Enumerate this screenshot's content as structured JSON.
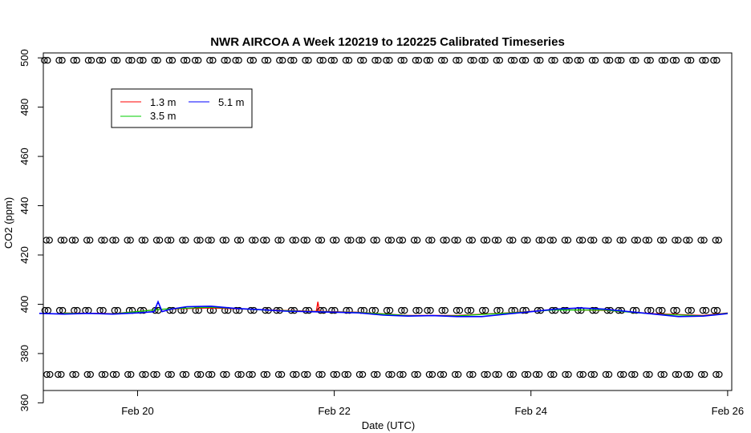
{
  "chart_data": {
    "type": "line",
    "title": "NWR AIRCOA A  Week 120219 to 120225  Calibrated Timeseries",
    "xlabel": "Date (UTC)",
    "ylabel": "CO2 (ppm)",
    "xlim": [
      "2012-02-19T01:00",
      "2012-02-26T01:00"
    ],
    "ylim": [
      365,
      502
    ],
    "x_ticks": [
      "2012-02-20",
      "2012-02-22",
      "2012-02-24",
      "2012-02-26"
    ],
    "x_tick_labels": [
      "Feb 20",
      "Feb 22",
      "Feb 24",
      "Feb 26"
    ],
    "y_ticks": [
      360,
      380,
      400,
      420,
      440,
      460,
      480,
      500
    ],
    "y_tick_labels": [
      "360",
      "380",
      "400",
      "420",
      "440",
      "460",
      "480",
      "500"
    ],
    "grid": false,
    "legend_position": "top-left",
    "legend": [
      {
        "label": "1.3 m",
        "color": "#ff0000"
      },
      {
        "label": "3.5 m",
        "color": "#00cd00"
      },
      {
        "label": "5.1 m",
        "color": "#0000ff"
      }
    ],
    "series": [
      {
        "name": "1.3 m",
        "color": "#ff0000",
        "x": [
          "2012-02-19T06:00",
          "2012-02-19T18:00",
          "2012-02-20T06:00",
          "2012-02-20T18:00",
          "2012-02-21T06:00",
          "2012-02-21T18:00",
          "2012-02-22T06:00",
          "2012-02-22T18:00",
          "2012-02-23T06:00",
          "2012-02-23T18:00",
          "2012-02-24T06:00",
          "2012-02-24T18:00",
          "2012-02-25T06:00",
          "2012-02-25T18:00",
          "2012-02-26T00:00"
        ],
        "values": [
          396.5,
          396.2,
          398.0,
          398.5,
          397.8,
          397.2,
          396.8,
          395.5,
          395.5,
          396.5,
          397.8,
          397.5,
          396.2,
          395.5,
          396.5
        ],
        "annotations": [
          {
            "x": "2012-02-21T20:00",
            "y": 401
          }
        ]
      },
      {
        "name": "3.5 m",
        "color": "#00cd00",
        "x": [
          "2012-02-19T06:00",
          "2012-02-19T18:00",
          "2012-02-20T06:00",
          "2012-02-20T18:00",
          "2012-02-21T06:00",
          "2012-02-21T18:00",
          "2012-02-22T06:00",
          "2012-02-22T18:00",
          "2012-02-23T06:00",
          "2012-02-23T18:00",
          "2012-02-24T06:00",
          "2012-02-24T18:00",
          "2012-02-25T06:00",
          "2012-02-25T18:00",
          "2012-02-26T00:00"
        ],
        "values": [
          396.4,
          396.1,
          398.0,
          398.8,
          397.7,
          397.1,
          396.7,
          395.4,
          395.3,
          396.4,
          397.7,
          397.6,
          396.0,
          395.3,
          396.4
        ]
      },
      {
        "name": "5.1 m",
        "color": "#0000ff",
        "x": [
          "2012-02-19T00:00",
          "2012-02-19T06:00",
          "2012-02-19T12:00",
          "2012-02-19T18:00",
          "2012-02-20T00:00",
          "2012-02-20T04:00",
          "2012-02-20T05:00",
          "2012-02-20T06:00",
          "2012-02-20T08:00",
          "2012-02-20T12:00",
          "2012-02-20T18:00",
          "2012-02-21T00:00",
          "2012-02-21T06:00",
          "2012-02-21T12:00",
          "2012-02-21T18:00",
          "2012-02-22T00:00",
          "2012-02-22T06:00",
          "2012-02-22T12:00",
          "2012-02-22T18:00",
          "2012-02-23T00:00",
          "2012-02-23T06:00",
          "2012-02-23T12:00",
          "2012-02-23T18:00",
          "2012-02-24T00:00",
          "2012-02-24T06:00",
          "2012-02-24T12:00",
          "2012-02-24T18:00",
          "2012-02-25T00:00",
          "2012-02-25T06:00",
          "2012-02-25T12:00",
          "2012-02-25T18:00",
          "2012-02-26T00:00"
        ],
        "values": [
          396.3,
          396.0,
          396.3,
          396.0,
          396.5,
          397.0,
          401.0,
          397.0,
          398.0,
          399.0,
          399.2,
          398.3,
          397.8,
          397.2,
          397.0,
          396.8,
          396.5,
          395.6,
          395.2,
          395.4,
          395.0,
          395.0,
          396.0,
          397.0,
          398.0,
          398.5,
          398.0,
          397.0,
          396.0,
          395.0,
          395.2,
          396.2
        ]
      }
    ],
    "points": [
      {
        "name": "",
        "level": 499,
        "marker": "open-circle"
      },
      {
        "name": "",
        "level": 426,
        "marker": "open-circle"
      },
      {
        "name": "",
        "level": 397.5,
        "marker": "open-circle"
      },
      {
        "name": "",
        "level": 371.5,
        "marker": "open-circle"
      }
    ]
  }
}
